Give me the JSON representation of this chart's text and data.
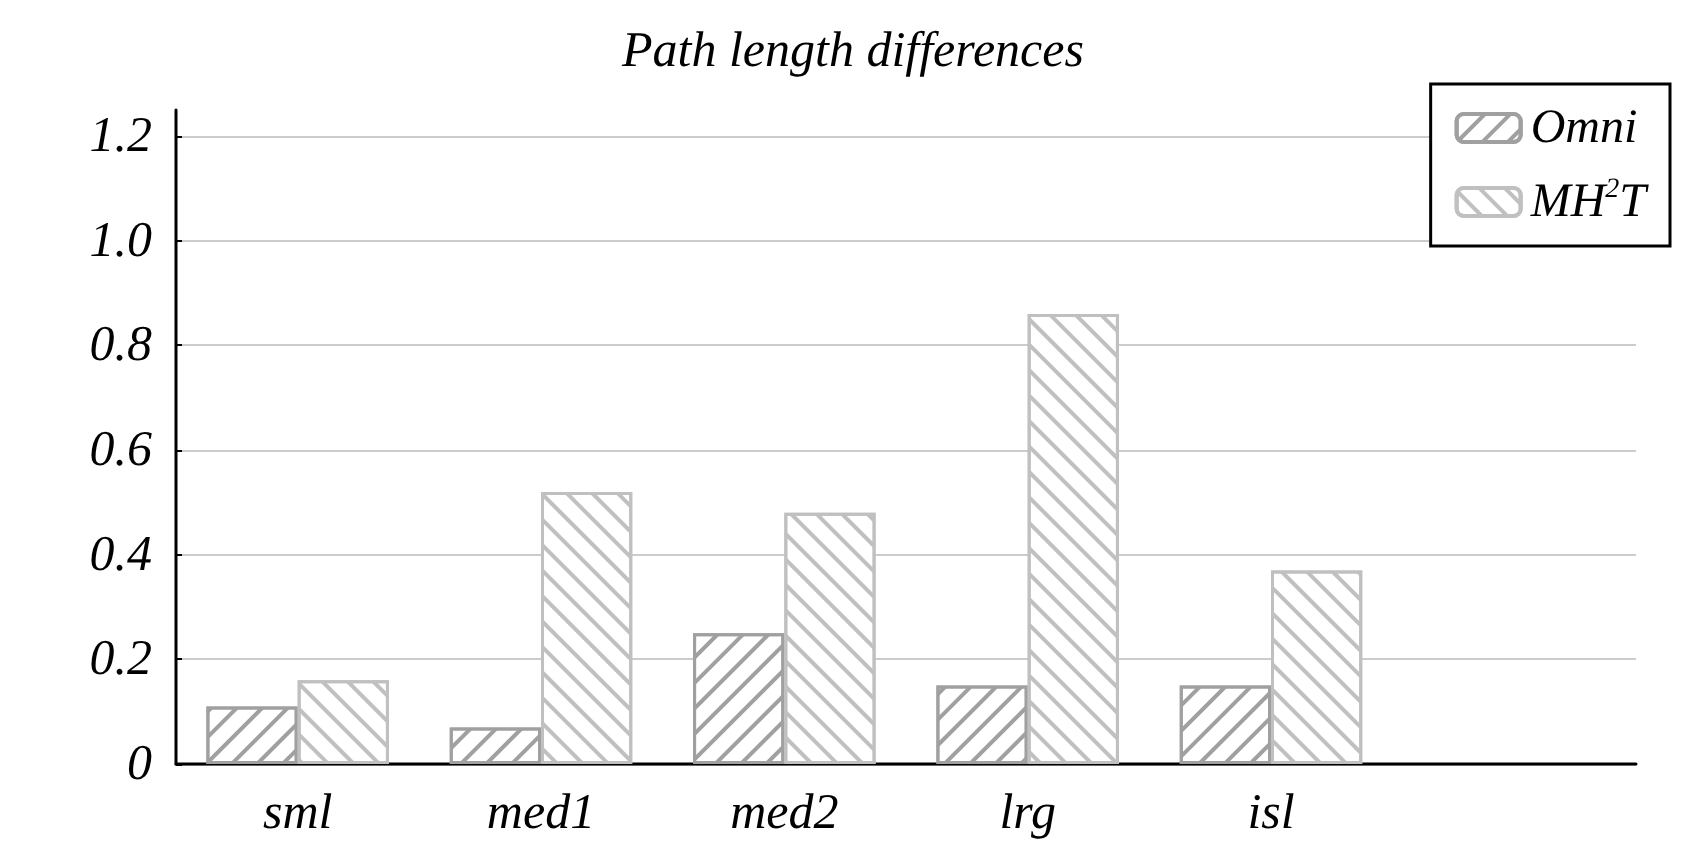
{
  "chart_data": {
    "type": "bar",
    "title": "Path length differences",
    "categories": [
      "sml",
      "med1",
      "med2",
      "lrg",
      "isl",
      null
    ],
    "series": [
      {
        "name": "Omni",
        "color": "#a0a0a0",
        "values": [
          0.11,
          0.07,
          0.25,
          0.15,
          0.15,
          null
        ]
      },
      {
        "name": "MH$^{2}$T",
        "color": "#c0c0c0",
        "values": [
          0.16,
          0.52,
          0.48,
          0.86,
          0.37,
          null
        ]
      }
    ],
    "ylim": [
      0,
      1.25
    ],
    "yticks": [
      0,
      0.2,
      0.4,
      0.6,
      0.8,
      {
        "value": 1,
        "label": "1.0"
      },
      1.2
    ],
    "grid": "y",
    "legend": "top right"
  }
}
